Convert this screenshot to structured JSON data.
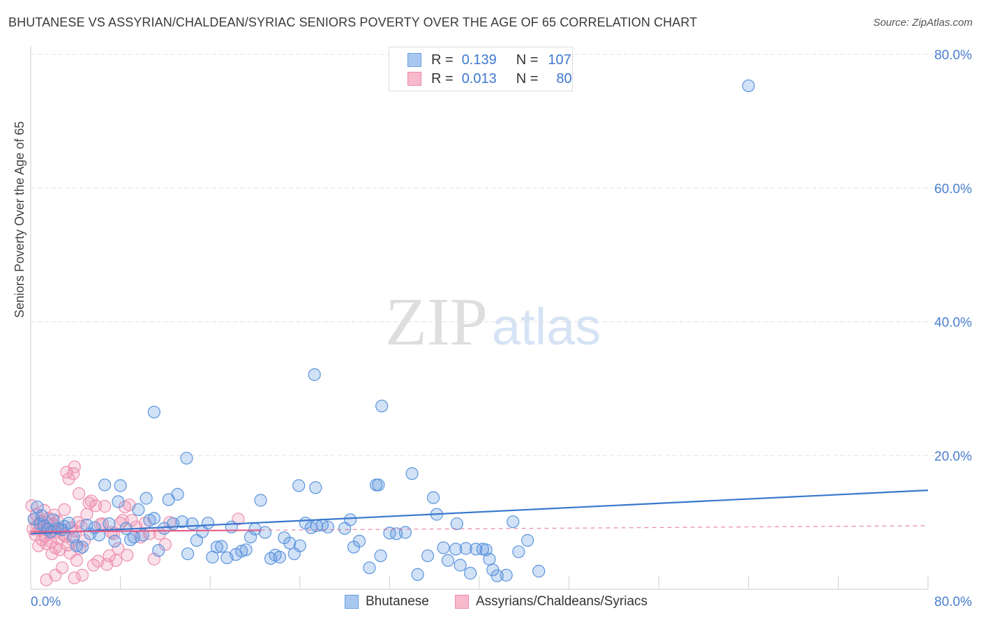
{
  "title": "BHUTANESE VS ASSYRIAN/CHALDEAN/SYRIAC SENIORS POVERTY OVER THE AGE OF 65 CORRELATION CHART",
  "source": "Source: ZipAtlas.com",
  "watermark": {
    "zip": "ZIP",
    "atlas": "atlas"
  },
  "legend": {
    "r_label": "R =",
    "n_label": "N =",
    "series": [
      {
        "name": "Bhutanese",
        "r": "0.139",
        "n": "107",
        "fill": "#a9c8f0",
        "stroke": "#6a9ee0"
      },
      {
        "name": "Assyrians/Chaldeans/Syriacs",
        "r": "0.013",
        "n": "80",
        "fill": "#f7b9cc",
        "stroke": "#ec8aa8"
      }
    ]
  },
  "colors": {
    "blue": "#5b95dd",
    "blue_line": "#3878cc",
    "pink": "#ee8fb0",
    "pink_line": "#e0608a",
    "grid": "#e3e3e3",
    "axis_text": "#4a7fcf"
  },
  "chart_data": {
    "type": "scatter",
    "title": "BHUTANESE VS ASSYRIAN/CHALDEAN/SYRIAC SENIORS POVERTY OVER THE AGE OF 65 CORRELATION CHART",
    "xlabel": "",
    "ylabel": "Seniors Poverty Over the Age of 65",
    "xlim": [
      0,
      80
    ],
    "ylim": [
      0,
      80
    ],
    "x_tick_labels": [
      "0.0%",
      "80.0%"
    ],
    "y_ticks": [
      20,
      40,
      60,
      80
    ],
    "y_tick_labels": [
      "20.0%",
      "40.0%",
      "60.0%",
      "80.0%"
    ],
    "grid": true,
    "legend_position": "top-center",
    "series": [
      {
        "name": "Bhutanese",
        "trend": {
          "x0": 0,
          "y0": 8.3,
          "x1": 80,
          "y1": 14.8,
          "style": "solid",
          "extent": [
            0,
            80
          ]
        },
        "points": [
          [
            0.3,
            10.5
          ],
          [
            0.6,
            12.3
          ],
          [
            0.8,
            9.8
          ],
          [
            1.0,
            11.0
          ],
          [
            1.2,
            9.5
          ],
          [
            1.5,
            9.0
          ],
          [
            1.8,
            8.6
          ],
          [
            2.0,
            10.4
          ],
          [
            2.4,
            9.1
          ],
          [
            2.8,
            8.9
          ],
          [
            3.0,
            9.4
          ],
          [
            3.4,
            9.9
          ],
          [
            3.8,
            7.8
          ],
          [
            4.1,
            6.5
          ],
          [
            4.6,
            6.3
          ],
          [
            5.0,
            9.6
          ],
          [
            5.3,
            8.3
          ],
          [
            5.7,
            9.2
          ],
          [
            6.1,
            8.1
          ],
          [
            6.6,
            15.6
          ],
          [
            7.0,
            9.8
          ],
          [
            7.5,
            7.2
          ],
          [
            7.8,
            13.1
          ],
          [
            8.0,
            15.5
          ],
          [
            8.5,
            9.1
          ],
          [
            8.9,
            7.4
          ],
          [
            9.2,
            7.8
          ],
          [
            9.6,
            11.9
          ],
          [
            10.0,
            8.1
          ],
          [
            10.3,
            13.6
          ],
          [
            10.6,
            10.3
          ],
          [
            11.0,
            10.6
          ],
          [
            11.4,
            5.8
          ],
          [
            11.9,
            9.1
          ],
          [
            12.3,
            13.4
          ],
          [
            12.7,
            9.8
          ],
          [
            13.1,
            14.2
          ],
          [
            13.5,
            10.1
          ],
          [
            14.0,
            5.3
          ],
          [
            14.4,
            9.8
          ],
          [
            14.8,
            7.3
          ],
          [
            15.3,
            8.6
          ],
          [
            15.8,
            9.9
          ],
          [
            16.2,
            4.8
          ],
          [
            16.6,
            6.3
          ],
          [
            17.0,
            6.4
          ],
          [
            17.5,
            4.7
          ],
          [
            17.9,
            9.3
          ],
          [
            18.3,
            5.2
          ],
          [
            18.8,
            5.7
          ],
          [
            19.2,
            5.9
          ],
          [
            19.6,
            7.8
          ],
          [
            20.0,
            9.0
          ],
          [
            20.5,
            13.3
          ],
          [
            20.9,
            8.5
          ],
          [
            21.4,
            4.6
          ],
          [
            21.8,
            5.1
          ],
          [
            22.2,
            4.8
          ],
          [
            22.6,
            7.7
          ],
          [
            23.1,
            6.9
          ],
          [
            23.5,
            5.3
          ],
          [
            24.0,
            6.5
          ],
          [
            24.5,
            9.9
          ],
          [
            25.0,
            9.2
          ],
          [
            25.5,
            9.5
          ],
          [
            26.0,
            9.6
          ],
          [
            26.5,
            9.3
          ],
          [
            11.0,
            26.5
          ],
          [
            13.9,
            19.6
          ],
          [
            23.9,
            15.5
          ],
          [
            25.4,
            15.2
          ],
          [
            28.0,
            9.1
          ],
          [
            28.5,
            10.4
          ],
          [
            28.8,
            6.3
          ],
          [
            29.3,
            7.2
          ],
          [
            30.2,
            3.2
          ],
          [
            31.0,
            15.6
          ],
          [
            31.2,
            5.0
          ],
          [
            32.0,
            8.4
          ],
          [
            32.6,
            8.3
          ],
          [
            33.4,
            8.5
          ],
          [
            34.0,
            17.3
          ],
          [
            34.5,
            2.2
          ],
          [
            35.4,
            5.0
          ],
          [
            35.9,
            13.7
          ],
          [
            36.2,
            11.2
          ],
          [
            36.8,
            6.2
          ],
          [
            37.2,
            4.3
          ],
          [
            37.9,
            6.0
          ],
          [
            38.3,
            3.6
          ],
          [
            38.8,
            6.1
          ],
          [
            39.2,
            2.4
          ],
          [
            39.7,
            6.0
          ],
          [
            40.3,
            6.0
          ],
          [
            40.6,
            5.9
          ],
          [
            40.9,
            4.5
          ],
          [
            41.2,
            2.9
          ],
          [
            41.6,
            2.0
          ],
          [
            42.4,
            2.1
          ],
          [
            43.0,
            10.1
          ],
          [
            43.5,
            5.6
          ],
          [
            44.3,
            7.3
          ],
          [
            45.3,
            2.7
          ],
          [
            30.8,
            15.6
          ],
          [
            38.0,
            9.8
          ],
          [
            25.3,
            32.1
          ],
          [
            31.3,
            27.4
          ],
          [
            64.0,
            75.3
          ]
        ]
      },
      {
        "name": "Assyrians/Chaldeans/Syriacs",
        "trend": {
          "x0": 0,
          "y0": 8.6,
          "x1": 80,
          "y1": 9.5,
          "style": "solid then dashed",
          "extent": [
            0,
            20.5
          ]
        },
        "points": [
          [
            0.1,
            12.5
          ],
          [
            0.2,
            9.0
          ],
          [
            0.3,
            10.5
          ],
          [
            0.4,
            8.2
          ],
          [
            0.5,
            11.2
          ],
          [
            0.6,
            9.6
          ],
          [
            0.7,
            6.5
          ],
          [
            0.8,
            8.8
          ],
          [
            0.9,
            10.1
          ],
          [
            1.0,
            7.4
          ],
          [
            1.1,
            9.3
          ],
          [
            1.2,
            11.8
          ],
          [
            1.3,
            8.0
          ],
          [
            1.4,
            6.8
          ],
          [
            1.5,
            9.9
          ],
          [
            1.6,
            10.6
          ],
          [
            1.7,
            8.4
          ],
          [
            1.8,
            7.1
          ],
          [
            1.9,
            5.3
          ],
          [
            2.0,
            9.7
          ],
          [
            2.1,
            11.1
          ],
          [
            2.2,
            6.2
          ],
          [
            2.3,
            8.6
          ],
          [
            2.4,
            10.2
          ],
          [
            2.5,
            7.6
          ],
          [
            2.6,
            5.9
          ],
          [
            2.7,
            9.0
          ],
          [
            2.8,
            3.2
          ],
          [
            2.9,
            8.2
          ],
          [
            3.0,
            11.9
          ],
          [
            3.1,
            7.9
          ],
          [
            3.2,
            17.5
          ],
          [
            3.3,
            6.6
          ],
          [
            3.4,
            16.5
          ],
          [
            3.5,
            5.4
          ],
          [
            3.6,
            9.2
          ],
          [
            3.7,
            7.4
          ],
          [
            3.8,
            17.3
          ],
          [
            3.9,
            18.3
          ],
          [
            4.0,
            8.7
          ],
          [
            4.1,
            4.3
          ],
          [
            4.2,
            10.0
          ],
          [
            4.3,
            14.3
          ],
          [
            4.4,
            6.1
          ],
          [
            4.5,
            9.4
          ],
          [
            4.6,
            2.1
          ],
          [
            4.8,
            7.3
          ],
          [
            5.0,
            11.2
          ],
          [
            5.2,
            12.9
          ],
          [
            5.4,
            13.2
          ],
          [
            5.6,
            3.6
          ],
          [
            5.8,
            12.5
          ],
          [
            6.0,
            4.2
          ],
          [
            6.2,
            9.7
          ],
          [
            6.4,
            9.8
          ],
          [
            6.6,
            12.4
          ],
          [
            6.8,
            3.7
          ],
          [
            7.0,
            5.0
          ],
          [
            7.2,
            8.5
          ],
          [
            7.4,
            8.3
          ],
          [
            7.6,
            4.3
          ],
          [
            7.8,
            6.1
          ],
          [
            8.0,
            9.9
          ],
          [
            8.2,
            10.3
          ],
          [
            8.4,
            12.3
          ],
          [
            8.6,
            5.1
          ],
          [
            8.8,
            12.6
          ],
          [
            9.0,
            10.3
          ],
          [
            9.4,
            9.3
          ],
          [
            9.8,
            7.8
          ],
          [
            10.2,
            9.9
          ],
          [
            10.6,
            8.3
          ],
          [
            11.0,
            4.5
          ],
          [
            11.5,
            8.3
          ],
          [
            12.0,
            6.7
          ],
          [
            12.4,
            10.0
          ],
          [
            1.4,
            1.4
          ],
          [
            2.2,
            2.1
          ],
          [
            3.9,
            1.7
          ],
          [
            18.5,
            10.5
          ]
        ]
      }
    ]
  }
}
